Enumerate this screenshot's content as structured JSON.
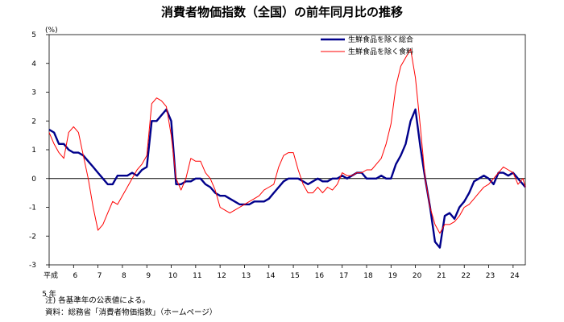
{
  "chart_data": {
    "type": "line",
    "title": "消費者物価指数（全国）の前年同月比の推移",
    "yunit": "(%)",
    "ylim": [
      -3,
      5
    ],
    "yticks": [
      "5",
      "4",
      "3",
      "2",
      "1",
      "0",
      "-1",
      "-2",
      "-3"
    ],
    "xlim": [
      5.0,
      24.5
    ],
    "xticks": [
      {
        "x": 5.0,
        "label": "平成"
      },
      {
        "x": 6.0,
        "label": "6"
      },
      {
        "x": 7.0,
        "label": "7"
      },
      {
        "x": 8.0,
        "label": "8"
      },
      {
        "x": 9.0,
        "label": "9"
      },
      {
        "x": 10.0,
        "label": "10"
      },
      {
        "x": 11.0,
        "label": "11"
      },
      {
        "x": 12.0,
        "label": "12"
      },
      {
        "x": 13.0,
        "label": "13"
      },
      {
        "x": 14.0,
        "label": "14"
      },
      {
        "x": 15.0,
        "label": "15"
      },
      {
        "x": 16.0,
        "label": "16"
      },
      {
        "x": 17.0,
        "label": "17"
      },
      {
        "x": 18.0,
        "label": "18"
      },
      {
        "x": 19.0,
        "label": "19"
      },
      {
        "x": 20.0,
        "label": "20"
      },
      {
        "x": 21.0,
        "label": "21"
      },
      {
        "x": 22.0,
        "label": "22"
      },
      {
        "x": 23.0,
        "label": "23"
      },
      {
        "x": 24.0,
        "label": "24"
      }
    ],
    "xlabel_line2": "5 年",
    "legend_position": "top-right",
    "series": [
      {
        "name": "生鮮食品を除く総合",
        "color": "#00008b",
        "points": [
          [
            5.0,
            1.7
          ],
          [
            5.2,
            1.6
          ],
          [
            5.4,
            1.2
          ],
          [
            5.6,
            1.2
          ],
          [
            5.8,
            1.0
          ],
          [
            6.0,
            0.9
          ],
          [
            6.2,
            0.9
          ],
          [
            6.4,
            0.8
          ],
          [
            6.6,
            0.6
          ],
          [
            6.8,
            0.4
          ],
          [
            7.0,
            0.2
          ],
          [
            7.2,
            0.0
          ],
          [
            7.4,
            -0.2
          ],
          [
            7.6,
            -0.2
          ],
          [
            7.8,
            0.1
          ],
          [
            8.0,
            0.1
          ],
          [
            8.2,
            0.1
          ],
          [
            8.4,
            0.2
          ],
          [
            8.6,
            0.1
          ],
          [
            8.8,
            0.3
          ],
          [
            9.0,
            0.4
          ],
          [
            9.2,
            2.0
          ],
          [
            9.4,
            2.0
          ],
          [
            9.6,
            2.2
          ],
          [
            9.8,
            2.4
          ],
          [
            10.0,
            2.0
          ],
          [
            10.2,
            -0.2
          ],
          [
            10.4,
            -0.2
          ],
          [
            10.6,
            -0.1
          ],
          [
            10.8,
            -0.1
          ],
          [
            11.0,
            0.0
          ],
          [
            11.2,
            0.0
          ],
          [
            11.4,
            -0.2
          ],
          [
            11.6,
            -0.3
          ],
          [
            11.8,
            -0.5
          ],
          [
            12.0,
            -0.6
          ],
          [
            12.2,
            -0.6
          ],
          [
            12.4,
            -0.7
          ],
          [
            12.6,
            -0.8
          ],
          [
            12.8,
            -0.9
          ],
          [
            13.0,
            -0.9
          ],
          [
            13.2,
            -0.9
          ],
          [
            13.4,
            -0.8
          ],
          [
            13.6,
            -0.8
          ],
          [
            13.8,
            -0.8
          ],
          [
            14.0,
            -0.7
          ],
          [
            14.2,
            -0.5
          ],
          [
            14.4,
            -0.3
          ],
          [
            14.6,
            -0.1
          ],
          [
            14.8,
            0.0
          ],
          [
            15.0,
            0.0
          ],
          [
            15.2,
            0.0
          ],
          [
            15.4,
            -0.1
          ],
          [
            15.6,
            -0.2
          ],
          [
            15.8,
            -0.1
          ],
          [
            16.0,
            0.0
          ],
          [
            16.2,
            -0.1
          ],
          [
            16.4,
            -0.1
          ],
          [
            16.6,
            0.0
          ],
          [
            16.8,
            0.0
          ],
          [
            17.0,
            0.1
          ],
          [
            17.2,
            0.0
          ],
          [
            17.4,
            0.1
          ],
          [
            17.6,
            0.2
          ],
          [
            17.8,
            0.2
          ],
          [
            18.0,
            0.0
          ],
          [
            18.2,
            0.0
          ],
          [
            18.4,
            0.0
          ],
          [
            18.6,
            0.1
          ],
          [
            18.8,
            0.0
          ],
          [
            19.0,
            0.0
          ],
          [
            19.2,
            0.5
          ],
          [
            19.4,
            0.8
          ],
          [
            19.6,
            1.2
          ],
          [
            19.8,
            2.0
          ],
          [
            20.0,
            2.4
          ],
          [
            20.2,
            1.1
          ],
          [
            20.4,
            0.0
          ],
          [
            20.6,
            -1.0
          ],
          [
            20.8,
            -2.2
          ],
          [
            21.0,
            -2.4
          ],
          [
            21.2,
            -1.3
          ],
          [
            21.4,
            -1.2
          ],
          [
            21.6,
            -1.4
          ],
          [
            21.8,
            -1.0
          ],
          [
            22.0,
            -0.8
          ],
          [
            22.2,
            -0.5
          ],
          [
            22.4,
            -0.1
          ],
          [
            22.6,
            0.0
          ],
          [
            22.8,
            0.1
          ],
          [
            23.0,
            0.0
          ],
          [
            23.2,
            -0.2
          ],
          [
            23.4,
            0.2
          ],
          [
            23.6,
            0.2
          ],
          [
            23.8,
            0.1
          ],
          [
            24.0,
            0.2
          ],
          [
            24.2,
            0.0
          ],
          [
            24.4,
            -0.2
          ],
          [
            24.5,
            -0.3
          ]
        ]
      },
      {
        "name": "生鮮食品を除く食料",
        "color": "#ff0000",
        "points": [
          [
            5.0,
            1.6
          ],
          [
            5.2,
            1.2
          ],
          [
            5.4,
            0.9
          ],
          [
            5.6,
            0.7
          ],
          [
            5.8,
            1.6
          ],
          [
            6.0,
            1.8
          ],
          [
            6.2,
            1.6
          ],
          [
            6.4,
            0.8
          ],
          [
            6.6,
            0.0
          ],
          [
            6.8,
            -1.0
          ],
          [
            7.0,
            -1.8
          ],
          [
            7.2,
            -1.6
          ],
          [
            7.4,
            -1.2
          ],
          [
            7.6,
            -0.8
          ],
          [
            7.8,
            -0.9
          ],
          [
            8.0,
            -0.6
          ],
          [
            8.2,
            -0.3
          ],
          [
            8.4,
            0.0
          ],
          [
            8.6,
            0.3
          ],
          [
            8.8,
            0.5
          ],
          [
            9.0,
            0.8
          ],
          [
            9.2,
            2.6
          ],
          [
            9.4,
            2.8
          ],
          [
            9.6,
            2.7
          ],
          [
            9.8,
            2.5
          ],
          [
            10.0,
            1.5
          ],
          [
            10.2,
            0.0
          ],
          [
            10.4,
            -0.4
          ],
          [
            10.6,
            0.0
          ],
          [
            10.8,
            0.7
          ],
          [
            11.0,
            0.6
          ],
          [
            11.2,
            0.6
          ],
          [
            11.4,
            0.2
          ],
          [
            11.6,
            0.0
          ],
          [
            11.8,
            -0.4
          ],
          [
            12.0,
            -1.0
          ],
          [
            12.2,
            -1.1
          ],
          [
            12.4,
            -1.2
          ],
          [
            12.6,
            -1.1
          ],
          [
            12.8,
            -1.0
          ],
          [
            13.0,
            -0.9
          ],
          [
            13.2,
            -0.8
          ],
          [
            13.4,
            -0.7
          ],
          [
            13.6,
            -0.6
          ],
          [
            13.8,
            -0.4
          ],
          [
            14.0,
            -0.3
          ],
          [
            14.2,
            -0.2
          ],
          [
            14.4,
            0.4
          ],
          [
            14.6,
            0.8
          ],
          [
            14.8,
            0.9
          ],
          [
            15.0,
            0.9
          ],
          [
            15.2,
            0.3
          ],
          [
            15.4,
            -0.2
          ],
          [
            15.6,
            -0.5
          ],
          [
            15.8,
            -0.5
          ],
          [
            16.0,
            -0.3
          ],
          [
            16.2,
            -0.5
          ],
          [
            16.4,
            -0.3
          ],
          [
            16.6,
            -0.4
          ],
          [
            16.8,
            -0.2
          ],
          [
            17.0,
            0.2
          ],
          [
            17.2,
            0.1
          ],
          [
            17.4,
            0.1
          ],
          [
            17.6,
            0.2
          ],
          [
            17.8,
            0.2
          ],
          [
            18.0,
            0.3
          ],
          [
            18.2,
            0.3
          ],
          [
            18.4,
            0.5
          ],
          [
            18.6,
            0.7
          ],
          [
            18.8,
            1.2
          ],
          [
            19.0,
            1.9
          ],
          [
            19.2,
            3.2
          ],
          [
            19.4,
            3.9
          ],
          [
            19.6,
            4.2
          ],
          [
            19.8,
            4.5
          ],
          [
            20.0,
            3.5
          ],
          [
            20.2,
            1.8
          ],
          [
            20.4,
            0.0
          ],
          [
            20.6,
            -1.0
          ],
          [
            20.8,
            -1.6
          ],
          [
            21.0,
            -1.9
          ],
          [
            21.2,
            -1.6
          ],
          [
            21.4,
            -1.6
          ],
          [
            21.6,
            -1.5
          ],
          [
            21.8,
            -1.3
          ],
          [
            22.0,
            -1.0
          ],
          [
            22.2,
            -0.9
          ],
          [
            22.4,
            -0.7
          ],
          [
            22.6,
            -0.5
          ],
          [
            22.8,
            -0.3
          ],
          [
            23.0,
            -0.2
          ],
          [
            23.2,
            0.0
          ],
          [
            23.4,
            0.2
          ],
          [
            23.6,
            0.4
          ],
          [
            23.8,
            0.3
          ],
          [
            24.0,
            0.2
          ],
          [
            24.2,
            -0.2
          ],
          [
            24.4,
            0.0
          ],
          [
            24.5,
            -0.3
          ]
        ]
      }
    ]
  },
  "notes": {
    "note1": "注) 各基準年の公表値による。",
    "note2": "資料：総務省「消費者物価指数」（ホームページ）"
  }
}
